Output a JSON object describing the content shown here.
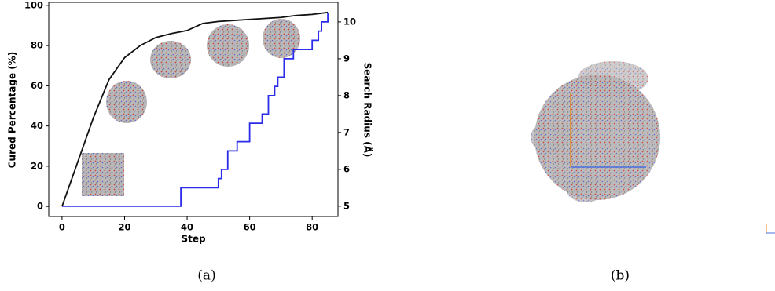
{
  "chart_data": {
    "type": "line",
    "xlabel": "Step",
    "ylabel": "Cured Percentage (%)",
    "y2label": "Search Radius (Å)",
    "xlim": [
      -4.25,
      88.25
    ],
    "xticks": [
      0,
      20,
      40,
      60,
      80
    ],
    "ylim": [
      -5,
      101.5
    ],
    "yticks": [
      0,
      20,
      40,
      60,
      80,
      100
    ],
    "y2lim": [
      4.72,
      10.53
    ],
    "y2ticks": [
      5,
      6,
      7,
      8,
      9,
      10
    ],
    "series": [
      {
        "color": "#111111",
        "x": [
          0,
          5,
          10,
          15,
          20,
          25,
          30,
          35,
          40,
          45,
          50,
          55,
          60,
          65,
          70,
          75,
          80,
          85
        ],
        "values": [
          0,
          22,
          44,
          63,
          74,
          80,
          84,
          86,
          87.5,
          91,
          92,
          92.5,
          93,
          93.5,
          94,
          95,
          95.5,
          96.5
        ]
      },
      {
        "color": "#2b2bea",
        "axis": "y2",
        "drawstyle": "steps-post",
        "x": [
          0,
          38,
          50,
          51,
          53,
          56,
          60,
          64,
          66,
          68,
          69,
          71,
          74,
          78,
          80,
          82,
          83,
          85
        ],
        "values": [
          5,
          5.5,
          5.75,
          6,
          6.5,
          6.75,
          7.25,
          7.5,
          8,
          8.25,
          8.5,
          9,
          9.25,
          9.25,
          9.5,
          9.75,
          10,
          10.25
        ]
      }
    ]
  },
  "captions": [
    "(a)",
    "(b)"
  ]
}
